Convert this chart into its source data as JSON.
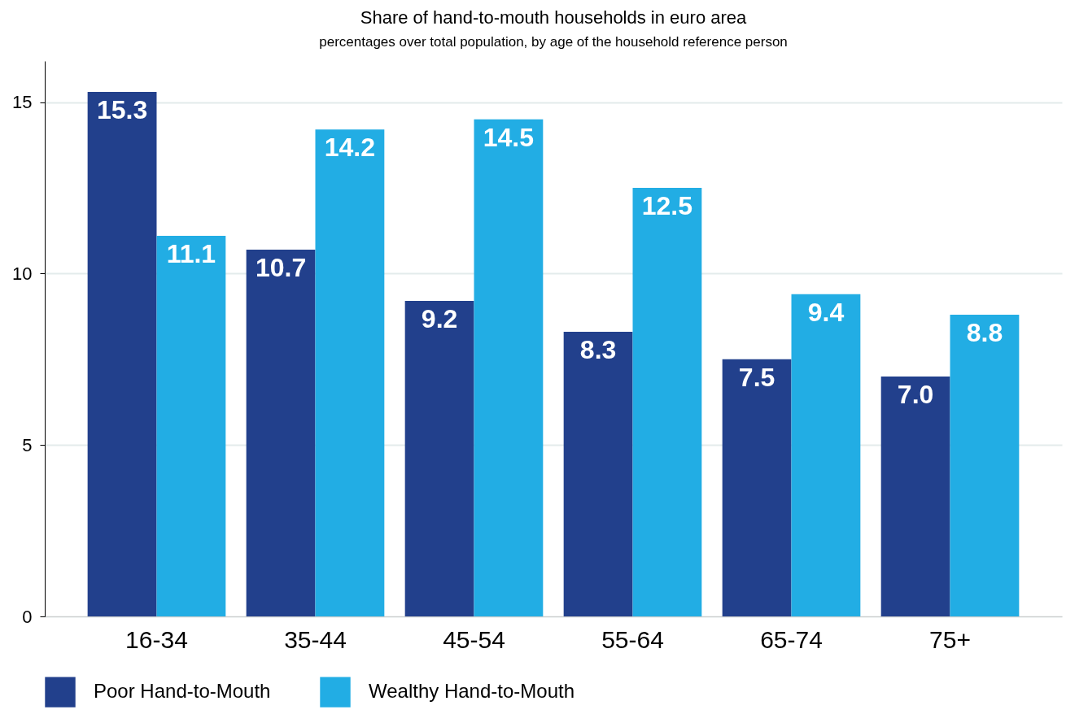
{
  "chart_data": {
    "type": "bar",
    "title": "Share of hand-to-mouth households in euro area",
    "subtitle": "percentages over total population, by age of the household reference person",
    "categories": [
      "16-34",
      "35-44",
      "45-54",
      "55-64",
      "65-74",
      "75+"
    ],
    "series": [
      {
        "name": "Poor Hand-to-Mouth",
        "color": "#22408c",
        "values": [
          15.3,
          10.7,
          9.2,
          8.3,
          7.5,
          7.0
        ],
        "value_labels": [
          "15.3",
          "10.7",
          "9.2",
          "8.3",
          "7.5",
          "7.0"
        ]
      },
      {
        "name": "Wealthy Hand-to-Mouth",
        "color": "#22ade4",
        "values": [
          11.1,
          14.2,
          14.5,
          12.5,
          9.4,
          8.8
        ],
        "value_labels": [
          "11.1",
          "14.2",
          "14.5",
          "12.5",
          "9.4",
          "8.8"
        ]
      }
    ],
    "ylim": [
      0,
      16.2
    ],
    "yticks": [
      0,
      5,
      10,
      15
    ],
    "grid": "y",
    "legend": "bottom"
  }
}
